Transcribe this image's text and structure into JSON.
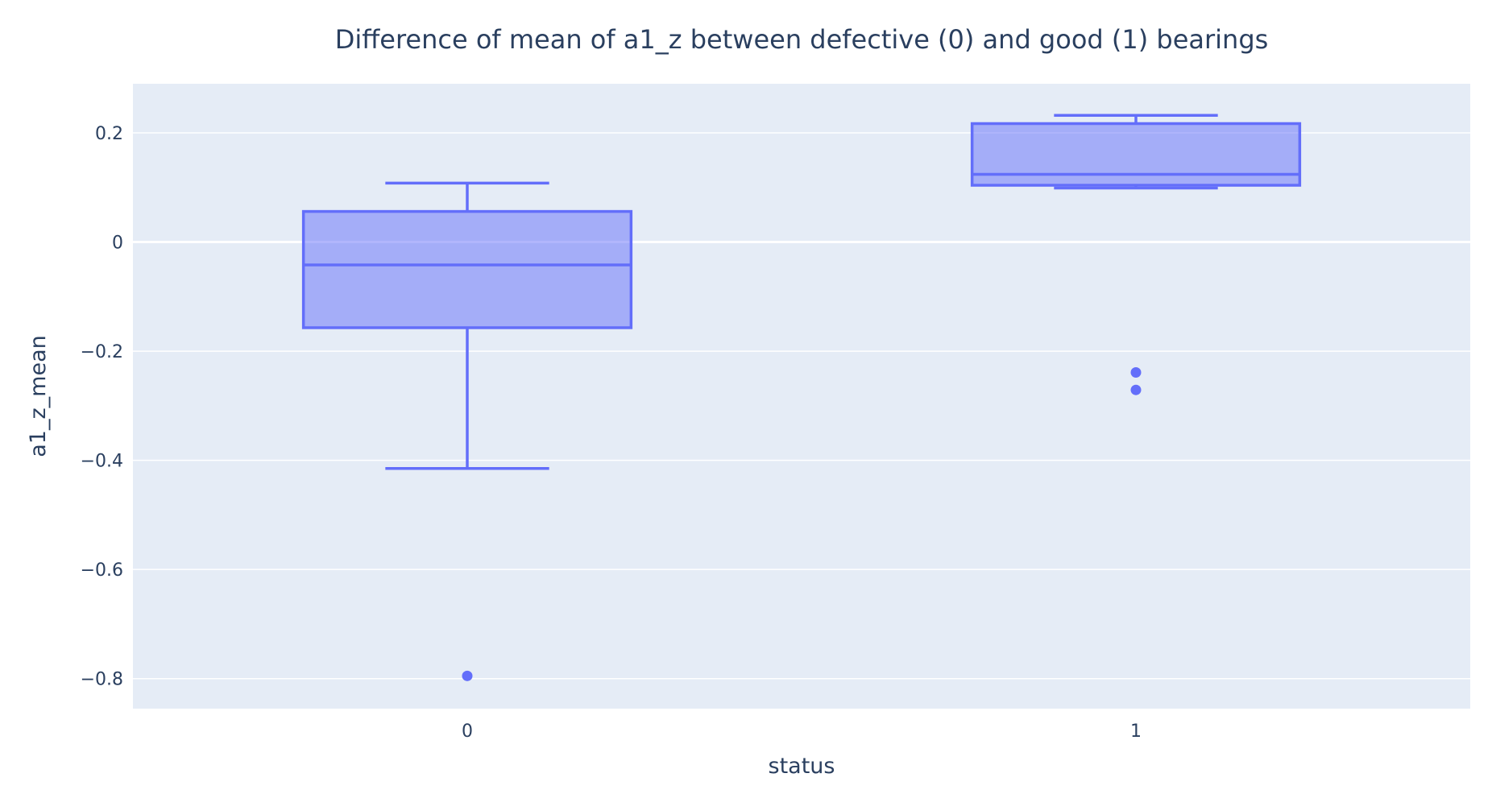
{
  "chart_data": {
    "type": "box",
    "title": "Difference of mean of a1_z between defective (0) and good (1) bearings",
    "xlabel": "status",
    "ylabel": "a1_z_mean",
    "categories": [
      "0",
      "1"
    ],
    "ylim": [
      -0.855,
      0.29
    ],
    "yticks": [
      0.2,
      0,
      -0.2,
      -0.4,
      -0.6,
      -0.8
    ],
    "ytick_labels": [
      "0.2",
      "0",
      "−0.2",
      "−0.4",
      "−0.6",
      "−0.8"
    ],
    "grid": true,
    "boxes": [
      {
        "category": "0",
        "lowerfence": -0.415,
        "q1": -0.157,
        "median": -0.042,
        "q3": 0.056,
        "upperfence": 0.108,
        "outliers": [
          -0.795
        ]
      },
      {
        "category": "1",
        "lowerfence": 0.099,
        "q1": 0.104,
        "median": 0.124,
        "q3": 0.217,
        "upperfence": 0.232,
        "outliers": [
          -0.239,
          -0.271
        ]
      }
    ],
    "colors": {
      "box_line": "#636efa",
      "box_fill": "rgba(99,110,250,0.5)",
      "plot_bg": "#e5ecf6",
      "grid": "#ffffff",
      "text": "#2a3f5f"
    }
  }
}
